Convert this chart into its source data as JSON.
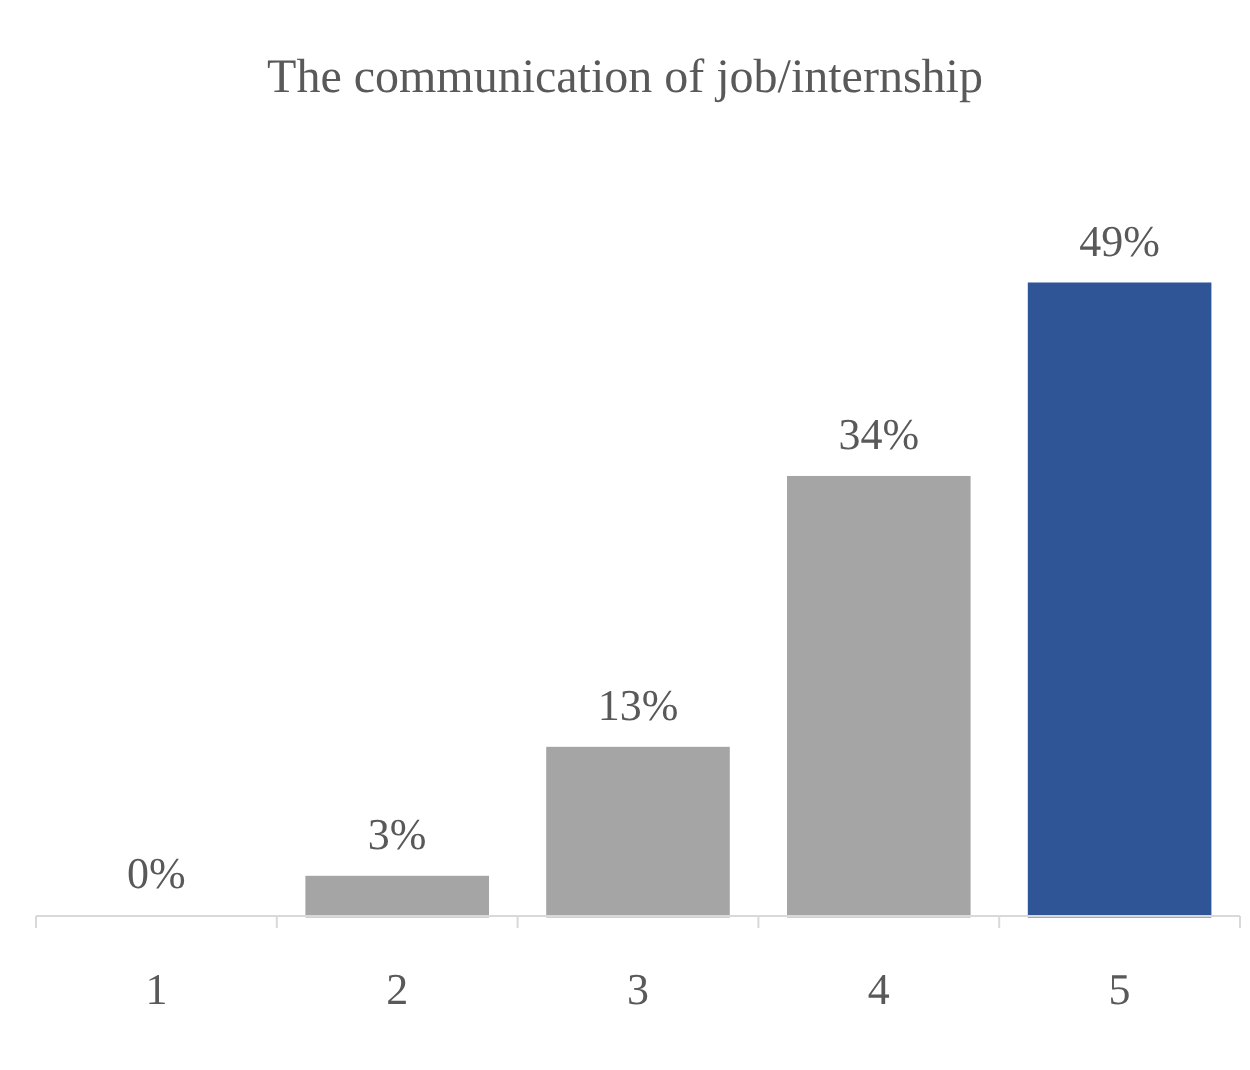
{
  "chart_data": {
    "type": "bar",
    "title": "The communication of job/internship",
    "categories": [
      "1",
      "2",
      "3",
      "4",
      "5"
    ],
    "values": [
      0,
      3,
      13,
      34,
      49
    ],
    "value_labels": [
      "0%",
      "3%",
      "13%",
      "34%",
      "49%"
    ],
    "colors": [
      "#a5a5a5",
      "#a5a5a5",
      "#a5a5a5",
      "#a5a5a5",
      "#2f5597"
    ]
  }
}
